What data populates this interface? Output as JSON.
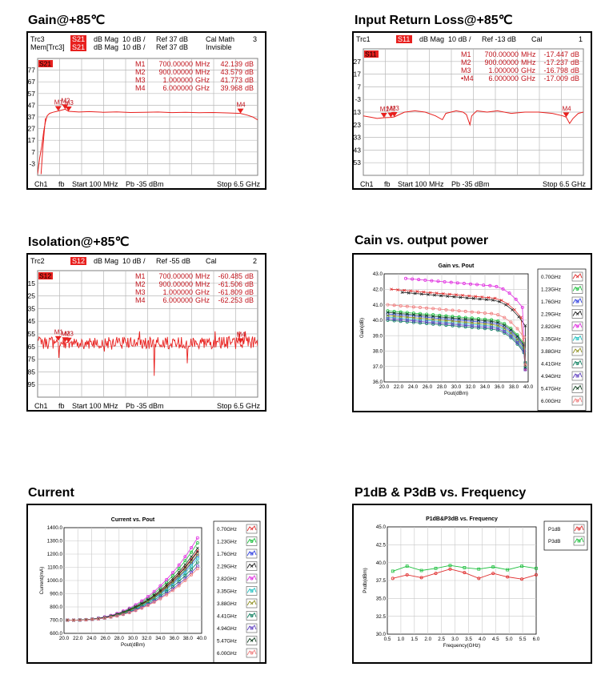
{
  "titles": {
    "gain": "Gain@+85℃",
    "irl": "Input Return Loss@+85℃",
    "iso": "Isolation@+85℃",
    "gvp": "Cain vs. output power",
    "cur": "Current",
    "p1": "P1dB & P3dB vs. Frequency"
  },
  "colors": {
    "trace_red": "#e8201e",
    "vna_text": "#c0141c",
    "highlight_bg": "#e8201e"
  },
  "chart_data": [
    {
      "type": "line",
      "id": "gain",
      "header_lines": [
        [
          "Trc3",
          "S21",
          "dB Mag",
          "10 dB /",
          "Ref 37 dB",
          "Cal Math",
          "3"
        ],
        [
          "Mem[Trc3]",
          "S21",
          "dB Mag",
          "10 dB /",
          "Ref 37 dB",
          "Invisible",
          ""
        ]
      ],
      "trace_tag": "S21",
      "yticks": [
        "77",
        "67",
        "57",
        "47",
        "37",
        "27",
        "17",
        "7",
        "-3"
      ],
      "ylim": [
        -13,
        87
      ],
      "xlim": [
        0.1,
        6.5
      ],
      "markers": [
        {
          "name": "M1",
          "freq": "700.00000",
          "unit": "MHz",
          "value": "42.139",
          "vunit": "dB"
        },
        {
          "name": "M2",
          "freq": "900.00000",
          "unit": "MHz",
          "value": "43.579",
          "vunit": "dB"
        },
        {
          "name": "M3",
          "freq": "1.000000",
          "unit": "GHz",
          "value": "41.773",
          "vunit": "dB"
        },
        {
          "name": "M4",
          "freq": "6.000000",
          "unit": "GHz",
          "value": "39.968",
          "vunit": "dB"
        }
      ],
      "marker_points": [
        [
          0.7,
          42.1,
          "M1"
        ],
        [
          0.9,
          43.6,
          "M2"
        ],
        [
          1.0,
          41.8,
          "M3"
        ],
        [
          6.0,
          40.0,
          "M4"
        ]
      ],
      "trace": [
        [
          0.1,
          -12
        ],
        [
          0.16,
          2
        ],
        [
          0.22,
          12
        ],
        [
          0.28,
          25
        ],
        [
          0.33,
          33
        ],
        [
          0.38,
          38
        ],
        [
          0.45,
          40
        ],
        [
          0.55,
          41
        ],
        [
          0.7,
          42.1
        ],
        [
          0.9,
          43.6
        ],
        [
          1.0,
          41.8
        ],
        [
          1.3,
          41.2
        ],
        [
          1.6,
          41.5
        ],
        [
          2.0,
          41.0
        ],
        [
          2.4,
          41.3
        ],
        [
          2.8,
          40.8
        ],
        [
          3.2,
          41.0
        ],
        [
          3.6,
          41.2
        ],
        [
          4.0,
          40.7
        ],
        [
          4.4,
          41.0
        ],
        [
          4.8,
          40.6
        ],
        [
          5.2,
          40.8
        ],
        [
          5.6,
          40.4
        ],
        [
          6.0,
          40.0
        ],
        [
          6.2,
          38.5
        ],
        [
          6.35,
          37
        ],
        [
          6.5,
          34.5
        ]
      ],
      "extra_trace": [
        [
          0.2,
          -12
        ],
        [
          0.24,
          5
        ],
        [
          0.28,
          20
        ],
        [
          0.31,
          30
        ],
        [
          0.33,
          36
        ]
      ],
      "footer": {
        "ch": "Ch1",
        "fb": "fb",
        "start": "Start  100 MHz",
        "pb": "Pb   -35 dBm",
        "stop": "Stop  6.5 GHz"
      }
    },
    {
      "type": "line",
      "id": "irl",
      "header_lines": [
        [
          "Trc1",
          "S11",
          "dB Mag",
          "10 dB /",
          "Ref -13 dB",
          "Cal",
          "1"
        ]
      ],
      "trace_tag": "S11",
      "yticks": [
        "27",
        "17",
        "7",
        "-3",
        "-13",
        "-23",
        "-33",
        "-43",
        "-53"
      ],
      "ylim": [
        -63,
        37
      ],
      "xlim": [
        0.1,
        6.5
      ],
      "markers": [
        {
          "name": "M1",
          "freq": "700.00000",
          "unit": "MHz",
          "value": "-17.447",
          "vunit": "dB"
        },
        {
          "name": "M2",
          "freq": "900.00000",
          "unit": "MHz",
          "value": "-17.237",
          "vunit": "dB"
        },
        {
          "name": "M3",
          "freq": "1.000000",
          "unit": "GHz",
          "value": "-16.798",
          "vunit": "dB"
        },
        {
          "name": "•M4",
          "freq": "6.000000",
          "unit": "GHz",
          "value": "-17.009",
          "vunit": "dB"
        }
      ],
      "marker_points": [
        [
          0.7,
          -17.4,
          "M1"
        ],
        [
          0.9,
          -17.2,
          "M2"
        ],
        [
          1.0,
          -16.8,
          "M3"
        ],
        [
          6.0,
          -17.0,
          "M4"
        ]
      ],
      "trace": [
        [
          0.1,
          -16
        ],
        [
          0.3,
          -17
        ],
        [
          0.5,
          -18
        ],
        [
          0.7,
          -17.4
        ],
        [
          0.9,
          -17.2
        ],
        [
          1.0,
          -16.8
        ],
        [
          1.3,
          -13
        ],
        [
          1.6,
          -12
        ],
        [
          1.9,
          -13
        ],
        [
          2.2,
          -16
        ],
        [
          2.4,
          -19
        ],
        [
          2.5,
          -14
        ],
        [
          2.8,
          -12
        ],
        [
          3.0,
          -13
        ],
        [
          3.1,
          -15
        ],
        [
          3.2,
          -23
        ],
        [
          3.25,
          -16
        ],
        [
          3.4,
          -12
        ],
        [
          3.7,
          -13
        ],
        [
          4.0,
          -12
        ],
        [
          4.4,
          -14
        ],
        [
          4.8,
          -13
        ],
        [
          5.2,
          -13
        ],
        [
          5.6,
          -14
        ],
        [
          5.9,
          -16
        ],
        [
          6.0,
          -17.0
        ],
        [
          6.1,
          -22
        ],
        [
          6.2,
          -18
        ],
        [
          6.35,
          -14
        ],
        [
          6.5,
          -13
        ]
      ],
      "footer": {
        "ch": "Ch1",
        "fb": "fb",
        "start": "Start  100 MHz",
        "pb": "Pb   -35 dBm",
        "stop": "Stop  6.5 GHz"
      }
    },
    {
      "type": "line",
      "id": "iso",
      "header_lines": [
        [
          "Trc2",
          "S12",
          "dB Mag",
          "10 dB /",
          "Ref -55 dB",
          "Cal",
          "2"
        ]
      ],
      "trace_tag": "S12",
      "yticks": [
        "-15",
        "-25",
        "-35",
        "-45",
        "-55",
        "-65",
        "-75",
        "-85",
        "-95"
      ],
      "ylim": [
        -105,
        -5
      ],
      "xlim": [
        0.1,
        6.5
      ],
      "markers": [
        {
          "name": "M1",
          "freq": "700.00000",
          "unit": "MHz",
          "value": "-60.485",
          "vunit": "dB"
        },
        {
          "name": "M2",
          "freq": "900.00000",
          "unit": "MHz",
          "value": "-61.506",
          "vunit": "dB"
        },
        {
          "name": "M3",
          "freq": "1.000000",
          "unit": "GHz",
          "value": "-61.809",
          "vunit": "dB"
        },
        {
          "name": "M4",
          "freq": "6.000000",
          "unit": "GHz",
          "value": "-62.253",
          "vunit": "dB"
        }
      ],
      "marker_points": [
        [
          0.7,
          -60.5,
          "M1"
        ],
        [
          0.9,
          -61.5,
          "M2"
        ],
        [
          1.0,
          -61.8,
          "M3"
        ],
        [
          6.0,
          -62.3,
          "M4"
        ]
      ],
      "noise": {
        "center": -62,
        "amplitude": 5,
        "spike_min": -90
      },
      "footer": {
        "ch": "Ch1",
        "fb": "fb",
        "start": "Start  100 MHz",
        "pb": "Pb   -35 dBm",
        "stop": "Stop  6.5 GHz"
      }
    },
    {
      "type": "line",
      "id": "gvp",
      "title": "Gain vs. Pout",
      "xlabel": "Pout(dBm)",
      "ylabel": "Gain(dB)",
      "xlim": [
        20,
        40
      ],
      "ylim": [
        36,
        43
      ],
      "xticks": [
        "20.0",
        "22.0",
        "24.0",
        "26.0",
        "28.0",
        "30.0",
        "32.0",
        "34.0",
        "36.0",
        "38.0",
        "40.0"
      ],
      "yticks": [
        "43.0",
        "42.0",
        "41.0",
        "40.0",
        "39.0",
        "38.0",
        "37.0",
        "36.0"
      ],
      "series": [
        {
          "name": "0.70GHz",
          "color": "#e03030",
          "gain": 42.0,
          "start": 21.0
        },
        {
          "name": "1.23GHz",
          "color": "#20c040",
          "gain": 40.6,
          "start": 20.5
        },
        {
          "name": "1.76GHz",
          "color": "#3040e0",
          "gain": 40.4,
          "start": 20.5
        },
        {
          "name": "2.29GHz",
          "color": "#202020",
          "gain": 41.8,
          "start": 22.5
        },
        {
          "name": "2.82GHz",
          "color": "#e030e0",
          "gain": 42.7,
          "start": 23.0
        },
        {
          "name": "3.35GHz",
          "color": "#20c0c0",
          "gain": 40.2,
          "start": 20.5
        },
        {
          "name": "3.88GHz",
          "color": "#909020",
          "gain": 40.3,
          "start": 20.5
        },
        {
          "name": "4.41GHz",
          "color": "#108060",
          "gain": 40.0,
          "start": 20.5
        },
        {
          "name": "4.94GHz",
          "color": "#6040c0",
          "gain": 40.1,
          "start": 20.5
        },
        {
          "name": "5.47GHz",
          "color": "#104020",
          "gain": 40.5,
          "start": 20.5
        },
        {
          "name": "6.00GHz",
          "color": "#f08080",
          "gain": 41.0,
          "start": 20.5
        }
      ]
    },
    {
      "type": "line",
      "id": "cur",
      "title": "Current vs. Pout",
      "xlabel": "Pout(dBm)",
      "ylabel": "Current(mA)",
      "xlim": [
        20,
        40
      ],
      "ylim": [
        600,
        1400
      ],
      "xticks": [
        "20.0",
        "22.0",
        "24.0",
        "26.0",
        "28.0",
        "30.0",
        "32.0",
        "34.0",
        "36.0",
        "38.0",
        "40.0"
      ],
      "yticks": [
        "1400.0",
        "1300.0",
        "1200.0",
        "1100.0",
        "1000.0",
        "900.0",
        "800.0",
        "700.0",
        "600.0"
      ],
      "series": [
        {
          "name": "0.70GHz",
          "color": "#e03030",
          "end": 1240
        },
        {
          "name": "1.23GHz",
          "color": "#20c040",
          "end": 1300
        },
        {
          "name": "1.76GHz",
          "color": "#3040e0",
          "end": 1200
        },
        {
          "name": "2.29GHz",
          "color": "#202020",
          "end": 1230
        },
        {
          "name": "2.82GHz",
          "color": "#e030e0",
          "end": 1340
        },
        {
          "name": "3.35GHz",
          "color": "#20c0c0",
          "end": 1180
        },
        {
          "name": "3.88GHz",
          "color": "#909020",
          "end": 1210
        },
        {
          "name": "4.41GHz",
          "color": "#108060",
          "end": 1150
        },
        {
          "name": "4.94GHz",
          "color": "#6040c0",
          "end": 1120
        },
        {
          "name": "5.47GHz",
          "color": "#104020",
          "end": 1260
        },
        {
          "name": "6.00GHz",
          "color": "#f08080",
          "end": 1100
        }
      ]
    },
    {
      "type": "line",
      "id": "p1",
      "title": "P1dB&P3dB vs. Frequency",
      "xlabel": "Frequency(GHz)",
      "ylabel": "Pxdb(dBm)",
      "xlim": [
        0.5,
        6.0
      ],
      "ylim": [
        30,
        45
      ],
      "xticks": [
        "0.5",
        "1.0",
        "1.5",
        "2.0",
        "2.5",
        "3.0",
        "3.5",
        "4.0",
        "4.5",
        "5.0",
        "5.5",
        "6.0"
      ],
      "yticks": [
        "45.0",
        "42.5",
        "40.0",
        "37.5",
        "35.0",
        "32.5",
        "30.0"
      ],
      "series": [
        {
          "name": "P1dB",
          "color": "#e03030",
          "x": [
            0.7,
            1.23,
            1.76,
            2.29,
            2.82,
            3.35,
            3.88,
            4.41,
            4.94,
            5.47,
            6.0
          ],
          "values": [
            37.8,
            38.3,
            37.9,
            38.5,
            39.1,
            38.6,
            37.8,
            38.5,
            38.0,
            37.7,
            38.3
          ]
        },
        {
          "name": "P3dB",
          "color": "#20c040",
          "x": [
            0.7,
            1.23,
            1.76,
            2.29,
            2.82,
            3.35,
            3.88,
            4.41,
            4.94,
            5.47,
            6.0
          ],
          "values": [
            38.8,
            39.5,
            38.9,
            39.2,
            39.6,
            39.3,
            39.1,
            39.4,
            39.0,
            39.5,
            39.2
          ]
        }
      ]
    }
  ]
}
